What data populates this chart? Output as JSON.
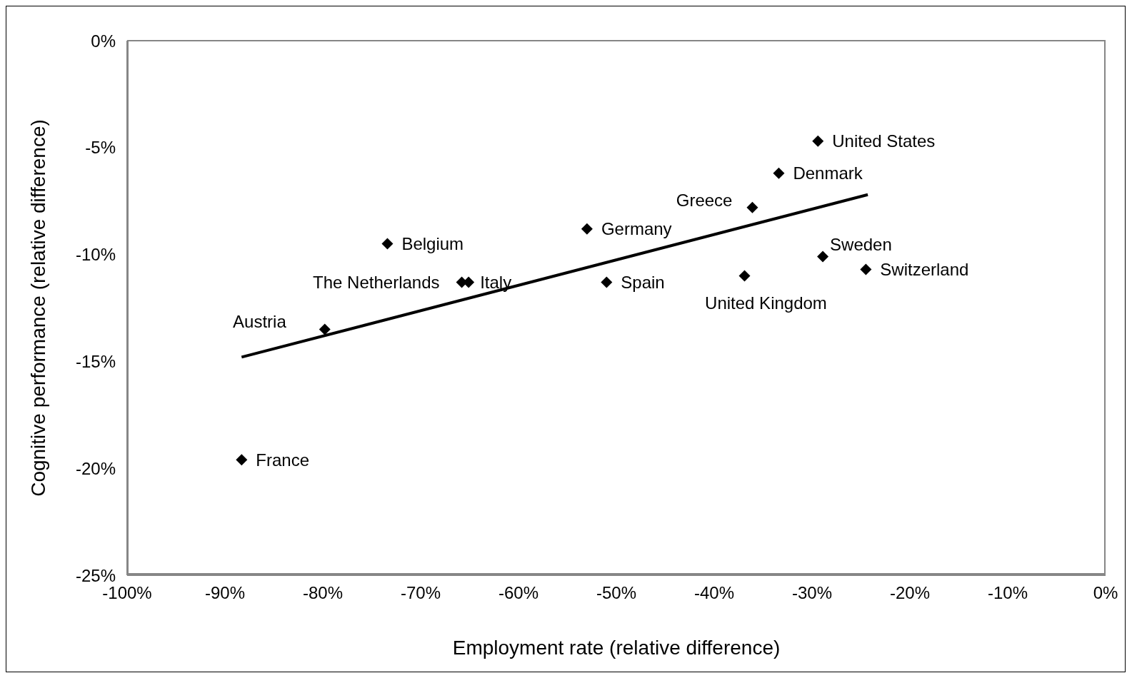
{
  "chart_data": {
    "type": "scatter",
    "xlabel": "Employment rate (relative difference)",
    "ylabel": "Cognitive performance (relative difference)",
    "xlim": [
      -100,
      0
    ],
    "ylim": [
      -25,
      0
    ],
    "xticks": [
      {
        "value": -100,
        "label": "-100%"
      },
      {
        "value": -90,
        "label": "-90%"
      },
      {
        "value": -80,
        "label": "-80%"
      },
      {
        "value": -70,
        "label": "-70%"
      },
      {
        "value": -60,
        "label": "-60%"
      },
      {
        "value": -50,
        "label": "-50%"
      },
      {
        "value": -40,
        "label": "-40%"
      },
      {
        "value": -30,
        "label": "-30%"
      },
      {
        "value": -20,
        "label": "-20%"
      },
      {
        "value": -10,
        "label": "-10%"
      },
      {
        "value": 0,
        "label": "0%"
      }
    ],
    "yticks": [
      {
        "value": -25,
        "label": "-25%"
      },
      {
        "value": -20,
        "label": "-20%"
      },
      {
        "value": -15,
        "label": "-15%"
      },
      {
        "value": -10,
        "label": "-10%"
      },
      {
        "value": -5,
        "label": "-5%"
      },
      {
        "value": 0,
        "label": "0%"
      }
    ],
    "marker": "diamond",
    "series": [
      {
        "name": "France",
        "color": "#000000",
        "x": [
          -88.3
        ],
        "values": [
          -19.6
        ]
      },
      {
        "name": "Austria",
        "color": "#000000",
        "x": [
          -79.8
        ],
        "values": [
          -13.5
        ]
      },
      {
        "name": "Belgium",
        "color": "#000000",
        "x": [
          -73.4
        ],
        "values": [
          -9.5
        ]
      },
      {
        "name": "The Netherlands",
        "color": "#000000",
        "x": [
          -65.8
        ],
        "values": [
          -11.3
        ]
      },
      {
        "name": "Italy",
        "color": "#000000",
        "x": [
          -65.1
        ],
        "values": [
          -11.3
        ]
      },
      {
        "name": "Germany",
        "color": "#000000",
        "x": [
          -53.0
        ],
        "values": [
          -8.8
        ]
      },
      {
        "name": "Spain",
        "color": "#000000",
        "x": [
          -51.0
        ],
        "values": [
          -11.3
        ]
      },
      {
        "name": "Greece",
        "color": "#000000",
        "x": [
          -36.1
        ],
        "values": [
          -7.8
        ]
      },
      {
        "name": "United Kingdom",
        "color": "#000000",
        "x": [
          -36.9
        ],
        "values": [
          -11.0
        ]
      },
      {
        "name": "Denmark",
        "color": "#000000",
        "x": [
          -33.4
        ],
        "values": [
          -6.2
        ]
      },
      {
        "name": "United States",
        "color": "#000000",
        "x": [
          -29.4
        ],
        "values": [
          -4.7
        ]
      },
      {
        "name": "Sweden",
        "color": "#000000",
        "x": [
          -28.9
        ],
        "values": [
          -10.1
        ]
      },
      {
        "name": "Switzerland",
        "color": "#000000",
        "x": [
          -24.5
        ],
        "values": [
          -10.7
        ]
      },
      {
        "type": "line",
        "marker": "none",
        "color": "#000000",
        "x": [
          -88.3,
          -24.3
        ],
        "values": [
          -14.8,
          -7.2
        ]
      }
    ]
  }
}
